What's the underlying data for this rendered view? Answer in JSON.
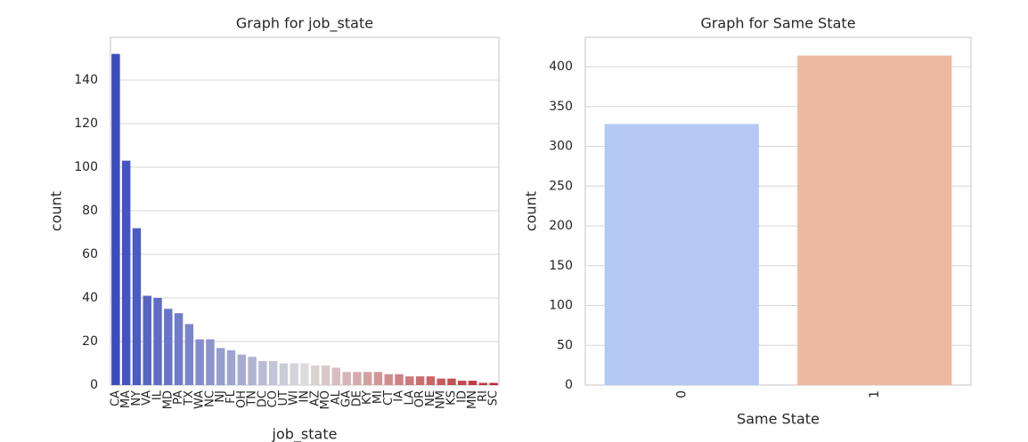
{
  "chart_data": [
    {
      "type": "bar",
      "title": "Graph for job_state",
      "x_label": "job_state",
      "y_label": "count",
      "categories": [
        "CA",
        "MA",
        "NY",
        "VA",
        "IL",
        "MD",
        "PA",
        "TX",
        "WA",
        "NC",
        "NJ",
        "FL",
        "OH",
        "TN",
        "DC",
        "CO",
        "UT",
        "WI",
        "IN",
        "AZ",
        "MO",
        "AL",
        "GA",
        "DE",
        "KY",
        "MI",
        "CT",
        "IA",
        "LA",
        "OR",
        "NE",
        "NM",
        "KS",
        "ID",
        "MN",
        "RI",
        "SC"
      ],
      "values": [
        152,
        103,
        72,
        41,
        40,
        35,
        33,
        28,
        21,
        21,
        17,
        16,
        14,
        13,
        11,
        11,
        10,
        10,
        10,
        9,
        9,
        8,
        6,
        6,
        6,
        6,
        5,
        5,
        4,
        4,
        4,
        3,
        3,
        2,
        2,
        1,
        1
      ],
      "palette": [
        "#3b4cc0",
        "#dddcdc",
        "#c0282f"
      ],
      "ylim": [
        0,
        159.6
      ],
      "yticks": [
        0,
        20,
        40,
        60,
        80,
        100,
        120,
        140
      ],
      "grid": true
    },
    {
      "type": "bar",
      "title": "Graph for Same State",
      "x_label": "Same State",
      "y_label": "count",
      "categories": [
        "0",
        "1"
      ],
      "values": [
        328,
        414
      ],
      "colors": [
        "#b3c9f4",
        "#edb9a1"
      ],
      "ylim": [
        0,
        436.9
      ],
      "yticks": [
        0,
        50,
        100,
        150,
        200,
        250,
        300,
        350,
        400
      ],
      "grid": true
    }
  ]
}
